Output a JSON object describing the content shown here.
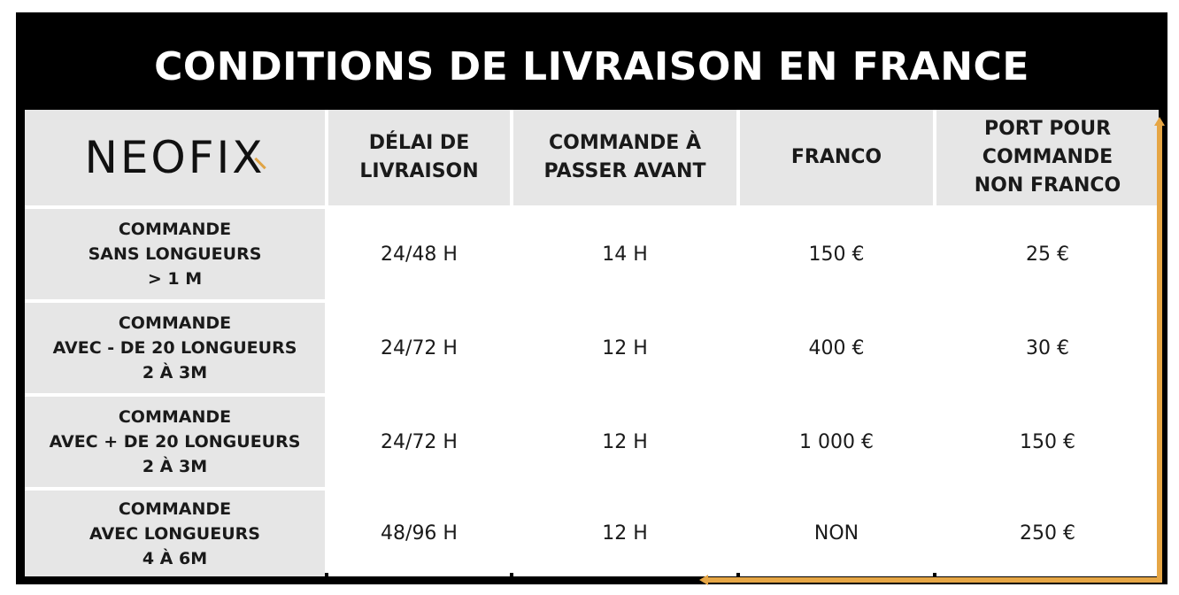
{
  "title": "CONDITIONS DE LIVRAISON EN FRANCE",
  "logo": "NEOFIX",
  "colors": {
    "accent": "#e6a645",
    "frame": "#000000",
    "header_bg": "#e6e6e6"
  },
  "headers": [
    "DÉLAI DE\nLIVRAISON",
    "COMMANDE À\nPASSER AVANT",
    "FRANCO",
    "PORT POUR\nCOMMANDE\nNON FRANCO"
  ],
  "rows": [
    {
      "label": "COMMANDE\nSANS LONGUEURS\n> 1 M",
      "delai": "24/48 H",
      "avant": "14 H",
      "franco": "150 €",
      "port": "25 €"
    },
    {
      "label": "COMMANDE\nAVEC - DE 20 LONGUEURS\n2 À 3M",
      "delai": "24/72 H",
      "avant": "12 H",
      "franco": "400 €",
      "port": "30 €"
    },
    {
      "label": "COMMANDE\nAVEC + DE 20 LONGUEURS\n2 À 3M",
      "delai": "24/72 H",
      "avant": "12 H",
      "franco": "1 000 €",
      "port": "150 €"
    },
    {
      "label": "COMMANDE\nAVEC LONGUEURS\n4 À 6M",
      "delai": "48/96 H",
      "avant": "12 H",
      "franco": "NON",
      "port": "250 €"
    }
  ]
}
